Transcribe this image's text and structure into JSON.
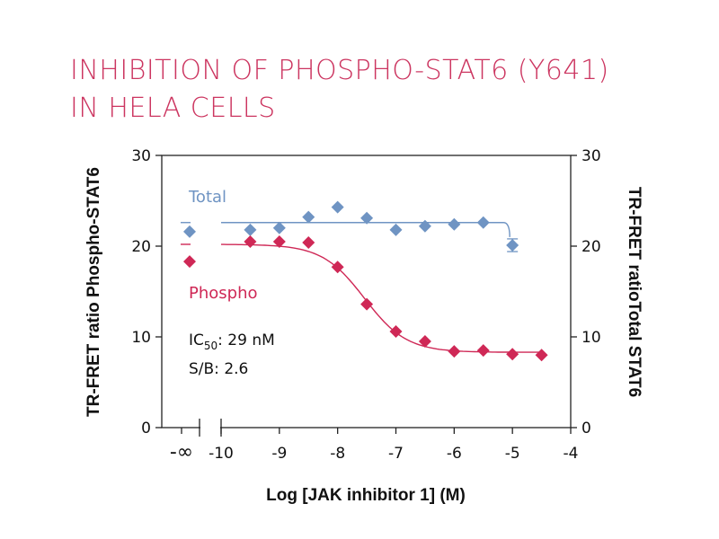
{
  "title": {
    "line1": "INHIBITION OF PHOSPHO-STAT6 (Y641)",
    "line2": "IN HELA CELLS"
  },
  "chart_data": {
    "type": "scatter",
    "xlabel": "Log [JAK inhibitor 1] (M)",
    "ylabel_left": "TR-FRET ratio Phospho-STAT6",
    "ylabel_right": "TR-FRET ratioTotal STAT6",
    "x_break_label": "-∞",
    "xlim": [
      -10,
      -4
    ],
    "ylim": [
      0,
      30
    ],
    "x_ticks": [
      "-10",
      "-9",
      "-8",
      "-7",
      "-6",
      "-5",
      "-4"
    ],
    "x_tick_values": [
      -10,
      -9,
      -8,
      -7,
      -6,
      -5,
      -4
    ],
    "y_ticks": [
      "0",
      "10",
      "20",
      "30"
    ],
    "y_tick_values": [
      0,
      10,
      20,
      30
    ],
    "colors": {
      "total": "#6f94c3",
      "phospho": "#cf2856"
    },
    "series": [
      {
        "name": "Total",
        "color": "#6f94c3",
        "baseline": 21.6,
        "points": [
          [
            -9.5,
            21.8
          ],
          [
            -9.0,
            22.0
          ],
          [
            -8.5,
            23.2
          ],
          [
            -8.0,
            24.3
          ],
          [
            -7.5,
            23.1
          ],
          [
            -7.0,
            21.8
          ],
          [
            -6.5,
            22.2
          ],
          [
            -6.0,
            22.4
          ],
          [
            -5.5,
            22.6
          ],
          [
            -5.0,
            20.1
          ]
        ],
        "fit": {
          "top": 22.6,
          "end_value": 21.0,
          "end_x": -5.0
        }
      },
      {
        "name": "Phospho",
        "color": "#cf2856",
        "baseline": 18.3,
        "points": [
          [
            -9.5,
            20.5
          ],
          [
            -9.0,
            20.5
          ],
          [
            -8.5,
            20.4
          ],
          [
            -8.0,
            17.7
          ],
          [
            -7.5,
            13.6
          ],
          [
            -7.0,
            10.6
          ],
          [
            -6.5,
            9.5
          ],
          [
            -6.0,
            8.4
          ],
          [
            -5.5,
            8.5
          ],
          [
            -5.0,
            8.1
          ],
          [
            -4.5,
            8.0
          ]
        ],
        "fit": {
          "top": 20.2,
          "bottom": 8.3,
          "log_ic50": -7.54,
          "hill": 1.2
        }
      }
    ],
    "annotations": {
      "ic50_prefix": "IC",
      "ic50_sub": "50",
      "ic50_value": ": 29 nM",
      "sb": "S/B: 2.6"
    }
  }
}
